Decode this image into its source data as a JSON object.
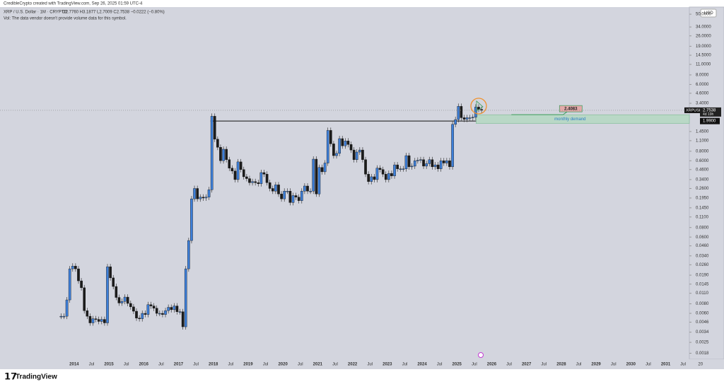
{
  "header": {
    "credit": "CredibleCrypto created with TradingView.com, Sep 26, 2025 01:59 UTC-4",
    "symbol": "XRP / U.S. Dollar · 1M · CRYPTO",
    "ohlc": "O2.7760 H3.1877 L2.7009 C2.7538 −0.0222 (−0.80%)",
    "volume_note": "Vol: The data vendor doesn't provide volume data for this symbol.",
    "logo": "TradingView"
  },
  "chart_data": {
    "type": "candlestick",
    "log": true,
    "currency": "USD",
    "up_color": "#3d7fd9",
    "down_color": "#1b1b1b",
    "ylim": [
      0.0015,
      62
    ],
    "xlim": [
      2011.87,
      2031.68
    ],
    "yticks": [
      {
        "value": 50,
        "label": "50.0000"
      },
      {
        "value": 34,
        "label": "34.0000"
      },
      {
        "value": 26,
        "label": "26.0000"
      },
      {
        "value": 19,
        "label": "19.0000"
      },
      {
        "value": 14.5,
        "label": "14.5000"
      },
      {
        "value": 11,
        "label": "11.0000"
      },
      {
        "value": 8,
        "label": "8.0000"
      },
      {
        "value": 6,
        "label": "6.0000"
      },
      {
        "value": 4.6,
        "label": "4.6000"
      },
      {
        "value": 3.4,
        "label": "3.4000"
      },
      {
        "value": 1.45,
        "label": "1.4500"
      },
      {
        "value": 1.1,
        "label": "1.1000"
      },
      {
        "value": 0.8,
        "label": "0.8000"
      },
      {
        "value": 0.6,
        "label": "0.6000"
      },
      {
        "value": 0.46,
        "label": "0.4600"
      },
      {
        "value": 0.34,
        "label": "0.3400"
      },
      {
        "value": 0.26,
        "label": "0.2600"
      },
      {
        "value": 0.195,
        "label": "0.1950"
      },
      {
        "value": 0.145,
        "label": "0.1450"
      },
      {
        "value": 0.11,
        "label": "0.1100"
      },
      {
        "value": 0.08,
        "label": "0.0800"
      },
      {
        "value": 0.06,
        "label": "0.0600"
      },
      {
        "value": 0.046,
        "label": "0.0460"
      },
      {
        "value": 0.034,
        "label": "0.0340"
      },
      {
        "value": 0.026,
        "label": "0.0260"
      },
      {
        "value": 0.019,
        "label": "0.0190"
      },
      {
        "value": 0.0145,
        "label": "0.0145"
      },
      {
        "value": 0.011,
        "label": "0.0110"
      },
      {
        "value": 0.008,
        "label": "0.0080"
      },
      {
        "value": 0.006,
        "label": "0.0060"
      },
      {
        "value": 0.0046,
        "label": "0.0046"
      },
      {
        "value": 0.0034,
        "label": "0.0034"
      },
      {
        "value": 0.0025,
        "label": "0.0025"
      },
      {
        "value": 0.0018,
        "label": "0.0018"
      }
    ],
    "xticks": [
      2014,
      {
        "value": 2014.5,
        "label": "Jul"
      },
      2015,
      {
        "value": 2015.5,
        "label": "Jul"
      },
      2016,
      {
        "value": 2016.5,
        "label": "Jul"
      },
      2017,
      {
        "value": 2017.5,
        "label": "Jul"
      },
      2018,
      {
        "value": 2018.5,
        "label": "Jul"
      },
      2019,
      {
        "value": 2019.5,
        "label": "Jul"
      },
      2020,
      {
        "value": 2020.5,
        "label": "Jul"
      },
      2021,
      {
        "value": 2021.5,
        "label": "Jul"
      },
      2022,
      {
        "value": 2022.5,
        "label": "Jul"
      },
      2023,
      {
        "value": 2023.5,
        "label": "Jul"
      },
      2024,
      {
        "value": 2024.5,
        "label": "Jul"
      },
      2025,
      {
        "value": 2025.5,
        "label": "Jul"
      },
      2026,
      {
        "value": 2026.5,
        "label": "Jul"
      },
      2027,
      {
        "value": 2027.5,
        "label": "Jul"
      },
      2028,
      {
        "value": 2028.5,
        "label": "Jul"
      },
      2029,
      {
        "value": 2029.5,
        "label": "Jul"
      },
      2030,
      {
        "value": 2030.5,
        "label": "Jul"
      },
      2031,
      {
        "value": 2031.5,
        "label": "Jul"
      },
      {
        "value": 2032,
        "label": "20"
      }
    ],
    "start": "2013-08",
    "closes": [
      0.0055,
      0.0055,
      0.009,
      0.023,
      0.025,
      0.023,
      0.016,
      0.013,
      0.0065,
      0.0055,
      0.0045,
      0.0051,
      0.005,
      0.0047,
      0.005,
      0.0045,
      0.0245,
      0.0175,
      0.0135,
      0.0097,
      0.0082,
      0.0086,
      0.0098,
      0.0081,
      0.0073,
      0.0064,
      0.0052,
      0.0051,
      0.006,
      0.0058,
      0.0078,
      0.0075,
      0.007,
      0.006,
      0.006,
      0.0058,
      0.0065,
      0.0072,
      0.0067,
      0.0075,
      0.0063,
      0.0063,
      0.004,
      0.023,
      0.054,
      0.19,
      0.26,
      0.19,
      0.2,
      0.195,
      0.2,
      0.25,
      2.3,
      1.15,
      0.9,
      0.6,
      0.85,
      0.62,
      0.48,
      0.44,
      0.34,
      0.58,
      0.46,
      0.37,
      0.35,
      0.31,
      0.32,
      0.31,
      0.3,
      0.42,
      0.4,
      0.31,
      0.26,
      0.24,
      0.29,
      0.22,
      0.19,
      0.24,
      0.24,
      0.17,
      0.21,
      0.2,
      0.18,
      0.24,
      0.28,
      0.24,
      0.24,
      0.63,
      0.22,
      0.49,
      0.43,
      0.56,
      1.5,
      1.0,
      0.7,
      0.75,
      1.17,
      0.94,
      1.09,
      0.98,
      0.83,
      0.62,
      0.78,
      0.83,
      0.62,
      0.4,
      0.32,
      0.37,
      0.34,
      0.48,
      0.46,
      0.4,
      0.34,
      0.41,
      0.38,
      0.53,
      0.47,
      0.47,
      0.47,
      0.7,
      0.5,
      0.51,
      0.6,
      0.61,
      0.62,
      0.51,
      0.55,
      0.62,
      0.5,
      0.53,
      0.47,
      0.6,
      0.56,
      0.6,
      0.5,
      1.8,
      2.08,
      3.1,
      2.2,
      2.1,
      2.2,
      2.2,
      2.24,
      3.03,
      2.83,
      2.7538
    ],
    "last": {
      "symbol": "XRPUSD",
      "value": 2.7538,
      "label": "2.7538",
      "countdown": "4d 19h"
    },
    "level": {
      "value": 1.99,
      "label": "1.9900",
      "from": 2017.92,
      "to": 2025.55
    },
    "zone": {
      "label": "monthly demand",
      "low": 1.85,
      "high": 2.4083,
      "from": 2025.55,
      "target": {
        "value": 2.4083,
        "label": "2.4083"
      }
    }
  }
}
